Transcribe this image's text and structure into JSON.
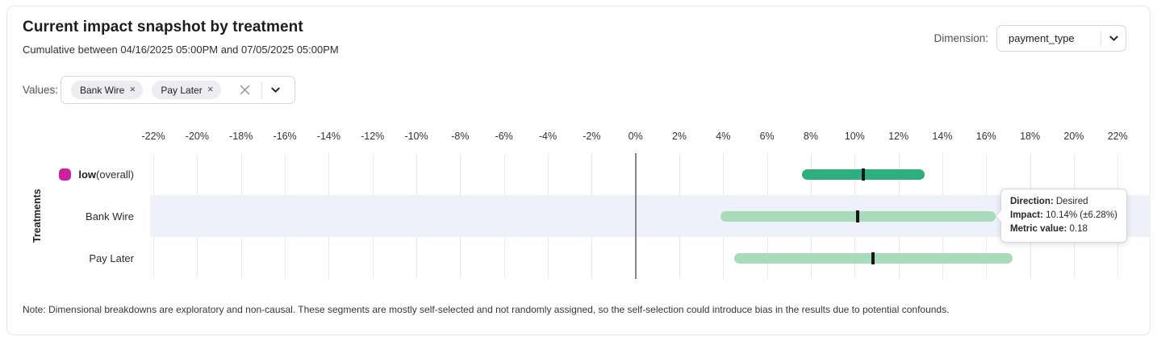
{
  "header": {
    "title": "Current impact snapshot by treatment",
    "subtitle": "Cumulative between 04/16/2025 05:00PM and 07/05/2025 05:00PM",
    "dimension_label": "Dimension:",
    "dimension_value": "payment_type"
  },
  "filters": {
    "values_label": "Values:",
    "chips": [
      {
        "label": "Bank Wire",
        "remove_icon": "✕"
      },
      {
        "label": "Pay Later",
        "remove_icon": "✕"
      }
    ]
  },
  "chart_data": {
    "type": "bar",
    "subtype": "horizontal-interval",
    "ylabel": "Treatments",
    "x_tick_suffix": "%",
    "x_ticks_pct": [
      -22,
      -20,
      -18,
      -16,
      -14,
      -12,
      -10,
      -8,
      -6,
      -4,
      -2,
      0,
      2,
      4,
      6,
      8,
      10,
      12,
      14,
      16,
      18,
      20,
      22
    ],
    "xlim": [
      -22.15,
      23.5
    ],
    "zero_line_pct": 0,
    "grid": true,
    "rows": [
      {
        "label": "low",
        "label_suffix": " (overall)",
        "swatch_color": "#cb21a0",
        "impact_pct": 10.4,
        "margin_pct": 2.8,
        "bar_color": "#2faf7f",
        "highlighted": false
      },
      {
        "label": "Bank Wire",
        "label_suffix": "",
        "swatch_color": null,
        "impact_pct": 10.14,
        "margin_pct": 6.28,
        "bar_color": "#a7dbbb",
        "highlighted": true
      },
      {
        "label": "Pay Later",
        "label_suffix": "",
        "swatch_color": null,
        "impact_pct": 10.85,
        "margin_pct": 6.35,
        "bar_color": "#a7dbbb",
        "highlighted": false
      }
    ]
  },
  "tooltip": {
    "direction_label": "Direction:",
    "direction_value": "Desired",
    "impact_label": "Impact:",
    "impact_value": "10.14% (±6.28%)",
    "metric_label": "Metric value:",
    "metric_value": "0.18"
  },
  "note": "Note: Dimensional breakdowns are exploratory and non-causal. These segments are mostly self-selected and not randomly assigned, so the self-selection could introduce bias in the results due to potential confounds.",
  "colors": {
    "accent_magenta": "#cb21a0",
    "bar_dark_green": "#2faf7f",
    "bar_light_green": "#a7dbbb",
    "row_highlight": "#eef0fa",
    "gridline": "#e9eaee",
    "zero_line": "#85868e"
  }
}
